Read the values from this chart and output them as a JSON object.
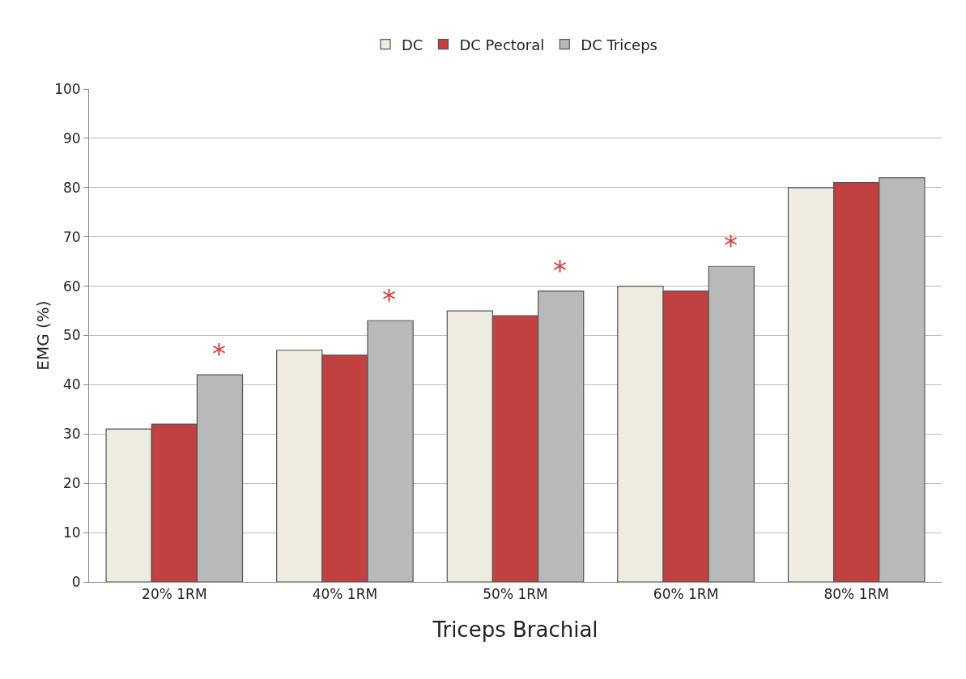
{
  "chart_data": {
    "type": "bar",
    "xlabel": "Triceps Brachial",
    "ylabel": "EMG (%)",
    "categories": [
      "20% 1RM",
      "40% 1RM",
      "50% 1RM",
      "60% 1RM",
      "80% 1RM"
    ],
    "series": [
      {
        "name": "DC",
        "color": "#eeebe1",
        "values": [
          31,
          47,
          55,
          60,
          80
        ]
      },
      {
        "name": "DC Pectoral",
        "color": "#c0413f",
        "values": [
          32,
          46,
          54,
          59,
          81
        ]
      },
      {
        "name": "DC Triceps",
        "color": "#b9b9b9",
        "values": [
          42,
          53,
          59,
          64,
          82
        ]
      }
    ],
    "ylim": [
      0,
      100
    ],
    "yticks": [
      0,
      10,
      20,
      30,
      40,
      50,
      60,
      70,
      80,
      90,
      100
    ],
    "grid": "y",
    "legend": "top",
    "annotations": [
      "*",
      "*",
      "*",
      "*"
    ]
  }
}
